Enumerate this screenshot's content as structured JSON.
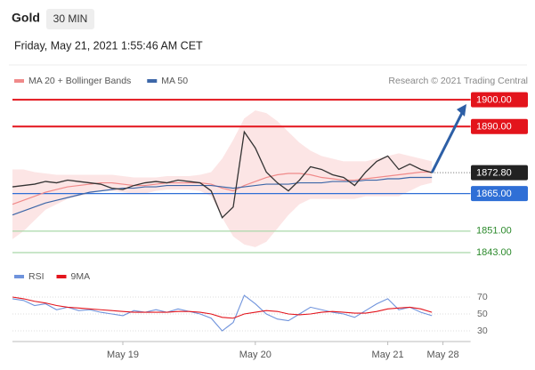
{
  "header": {
    "symbol": "Gold",
    "timeframe": "30 MIN",
    "timestamp": "Friday, May 21, 2021 1:55:46 AM CET"
  },
  "chart_data": [
    {
      "type": "line",
      "source": "Research © 2021 Trading Central",
      "x": [
        0,
        1,
        2,
        3,
        4,
        5,
        6,
        7,
        8,
        9,
        10,
        11,
        12,
        13,
        14,
        15,
        16,
        17,
        18,
        19,
        20,
        21,
        22,
        23,
        24,
        25,
        26,
        27,
        28,
        29,
        30,
        31,
        32,
        33,
        34,
        35,
        36,
        37,
        38
      ],
      "values": [
        1867.5,
        1868,
        1868.5,
        1869.5,
        1869,
        1870,
        1869.5,
        1869,
        1868.5,
        1867,
        1866.5,
        1868,
        1869,
        1869.5,
        1869,
        1870,
        1869.5,
        1869,
        1866,
        1856,
        1860,
        1888,
        1882,
        1873,
        1869,
        1866,
        1870,
        1875,
        1874,
        1872,
        1871,
        1868,
        1873,
        1877,
        1879,
        1874,
        1876,
        1874,
        1872.8
      ],
      "color": "#333333",
      "series": [
        {
          "name": "MA 20 + Bollinger Bands",
          "color": "#f08a8a",
          "values": [
            1861,
            1862.5,
            1864,
            1865.5,
            1866.5,
            1867.5,
            1868,
            1868.5,
            1869,
            1869,
            1868.5,
            1868,
            1868,
            1868.5,
            1869,
            1869,
            1869,
            1869,
            1868.5,
            1867,
            1866,
            1868,
            1869.5,
            1871,
            1872,
            1872.5,
            1872.5,
            1872,
            1871,
            1870.5,
            1870,
            1870,
            1870.5,
            1871,
            1871.5,
            1872,
            1872.5,
            1873,
            1873
          ],
          "upper": [
            1874,
            1874,
            1873,
            1872.5,
            1872,
            1872,
            1872,
            1872,
            1872,
            1872,
            1871.5,
            1871,
            1871,
            1871,
            1871.5,
            1871.5,
            1871.5,
            1872,
            1873,
            1878,
            1885,
            1893,
            1896,
            1895,
            1892,
            1888,
            1884,
            1881,
            1879,
            1878,
            1877,
            1877,
            1877,
            1878,
            1879,
            1880,
            1879,
            1878,
            1877
          ],
          "lower": [
            1848,
            1851,
            1855,
            1859,
            1861,
            1863,
            1864,
            1865,
            1866,
            1866,
            1865.5,
            1865,
            1865,
            1866,
            1866.5,
            1866.5,
            1866.5,
            1866,
            1864,
            1856,
            1849,
            1846,
            1845,
            1847,
            1852,
            1857,
            1861,
            1863,
            1863,
            1863,
            1863,
            1863,
            1864,
            1864,
            1864,
            1864,
            1866,
            1868,
            1869
          ]
        },
        {
          "name": "MA 50",
          "color": "#3d67a8",
          "values": [
            1857,
            1858.5,
            1860,
            1861.5,
            1862.5,
            1863.5,
            1864.5,
            1865.5,
            1866,
            1866.5,
            1867,
            1867,
            1867.5,
            1867.5,
            1868,
            1868,
            1868,
            1868,
            1868,
            1867.5,
            1867,
            1867.5,
            1868,
            1868.5,
            1868.5,
            1868.5,
            1869,
            1869,
            1869,
            1869.5,
            1869.5,
            1869.5,
            1870,
            1870,
            1870.5,
            1870.5,
            1871,
            1871,
            1871
          ]
        }
      ],
      "levels": [
        {
          "value": 1900,
          "label": "1900.00",
          "color": "#e3141c",
          "style": "box"
        },
        {
          "value": 1890,
          "label": "1890.00",
          "color": "#e3141c",
          "style": "box"
        },
        {
          "value": 1872.8,
          "label": "1872.80",
          "color": "#222222",
          "style": "last"
        },
        {
          "value": 1865,
          "label": "1865.00",
          "color": "#2f6fd6",
          "style": "box"
        },
        {
          "value": 1851,
          "label": "1851.00",
          "color": "#2c8a2c",
          "style": "text"
        },
        {
          "value": 1843,
          "label": "1843.00",
          "color": "#2c8a2c",
          "style": "text"
        }
      ],
      "xlim": [
        0,
        41.5
      ],
      "ylim": [
        1841,
        1904
      ]
    },
    {
      "type": "line",
      "x": [
        0,
        1,
        2,
        3,
        4,
        5,
        6,
        7,
        8,
        9,
        10,
        11,
        12,
        13,
        14,
        15,
        16,
        17,
        18,
        19,
        20,
        21,
        22,
        23,
        24,
        25,
        26,
        27,
        28,
        29,
        30,
        31,
        32,
        33,
        34,
        35,
        36,
        37,
        38
      ],
      "series": [
        {
          "name": "RSI",
          "color": "#6f93dc",
          "values": [
            68,
            66,
            60,
            62,
            55,
            58,
            54,
            55,
            52,
            50,
            48,
            54,
            52,
            55,
            52,
            56,
            53,
            50,
            45,
            30,
            40,
            72,
            62,
            50,
            44,
            42,
            50,
            58,
            55,
            52,
            50,
            46,
            54,
            62,
            68,
            55,
            58,
            52,
            48
          ]
        },
        {
          "name": "9MA",
          "color": "#e3141c",
          "values": [
            70,
            68,
            65,
            63,
            60,
            58,
            57,
            56,
            55,
            54,
            53,
            52,
            52,
            52,
            52,
            53,
            53,
            52,
            50,
            46,
            45,
            50,
            52,
            54,
            53,
            50,
            49,
            50,
            52,
            53,
            52,
            51,
            51,
            53,
            56,
            57,
            58,
            56,
            52
          ]
        }
      ],
      "xlim": [
        0,
        41.5
      ],
      "ylim": [
        20,
        83
      ],
      "yticks": [
        30,
        50,
        70
      ],
      "xticks": [
        {
          "value": 10,
          "label": "May 19"
        },
        {
          "value": 22,
          "label": "May 20"
        },
        {
          "value": 34,
          "label": "May 21"
        },
        {
          "value": 39,
          "label": "May 28"
        }
      ]
    }
  ]
}
